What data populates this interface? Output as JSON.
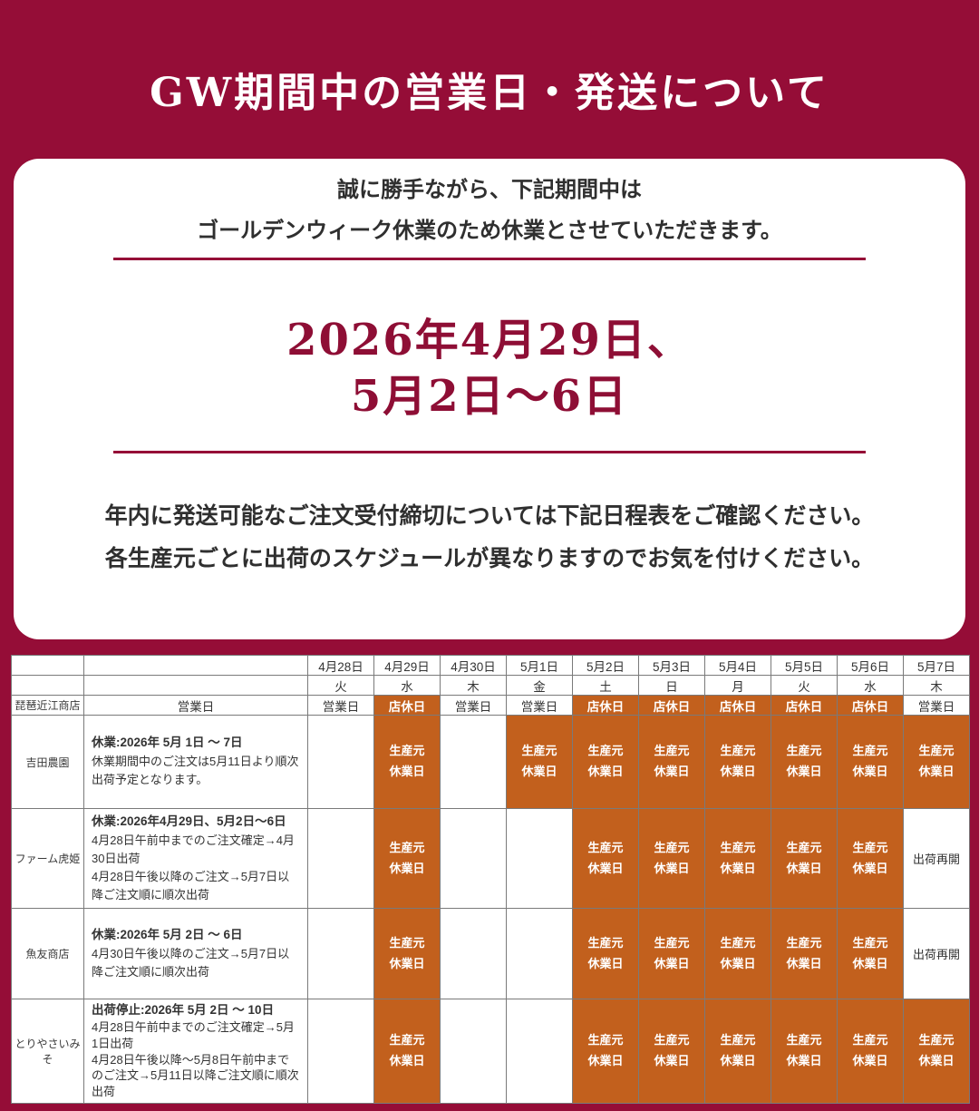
{
  "title": "GW期間中の営業日・発送について",
  "notice": {
    "intro_lines": [
      "誠に勝手ながら、下記期間中は",
      "ゴールデンウィーク休業のため休業とさせていただきます。"
    ],
    "closure_period_lines": [
      "2026年4月29日、",
      "5月2日〜6日"
    ],
    "footer_lines": [
      "年内に発送可能なご注文受付締切については下記日程表をご確認ください。",
      "各生産元ごとに出荷のスケジュールが異なりますのでお気を付けください。"
    ]
  },
  "colors": {
    "background_maroon": "#950d37",
    "closure_text_maroon": "#8e0e35",
    "holiday_orange": "#c2601d",
    "text_dark": "#333333",
    "table_border_gray": "#7a7a7a"
  },
  "schedule_table": {
    "date_headers": [
      "4月28日",
      "4月29日",
      "4月30日",
      "5月1日",
      "5月2日",
      "5月3日",
      "5月4日",
      "5月5日",
      "5月6日",
      "5月7日"
    ],
    "day_headers": [
      "火",
      "水",
      "木",
      "金",
      "土",
      "日",
      "月",
      "火",
      "水",
      "木"
    ],
    "store_row": {
      "name": "琵琶近江商店",
      "schedule_label": "営業日",
      "cells": [
        "営業日",
        "店休日",
        "営業日",
        "営業日",
        "店休日",
        "店休日",
        "店休日",
        "店休日",
        "店休日",
        "営業日"
      ]
    },
    "producer_rows": [
      {
        "name": "吉田農園",
        "note_title": "休業:2026年 5月 1日 〜 7日",
        "note_lines": [
          "休業期間中のご注文は5月11日より順次出荷予定となります。"
        ],
        "cells": [
          "",
          "生産元休業日",
          "",
          "生産元休業日",
          "生産元休業日",
          "生産元休業日",
          "生産元休業日",
          "生産元休業日",
          "生産元休業日",
          "生産元休業日"
        ]
      },
      {
        "name": "ファーム虎姫",
        "note_title": "休業:2026年4月29日、5月2日〜6日",
        "note_lines": [
          "4月28日午前中までのご注文確定→4月30日出荷",
          "4月28日午後以降のご注文→5月7日以降ご注文順に順次出荷"
        ],
        "cells": [
          "",
          "生産元休業日",
          "",
          "",
          "生産元休業日",
          "生産元休業日",
          "生産元休業日",
          "生産元休業日",
          "生産元休業日",
          "出荷再開"
        ]
      },
      {
        "name": "魚友商店",
        "note_title": "休業:2026年 5月 2日 〜 6日",
        "note_lines": [
          "4月30日午後以降のご注文→5月7日以降ご注文順に順次出荷"
        ],
        "cells": [
          "",
          "生産元休業日",
          "",
          "",
          "生産元休業日",
          "生産元休業日",
          "生産元休業日",
          "生産元休業日",
          "生産元休業日",
          "出荷再開"
        ]
      },
      {
        "name": "とりやさいみそ",
        "note_title": "出荷停止:2026年 5月 2日 〜 10日",
        "note_lines": [
          "4月28日午前中までのご注文確定→5月1日出荷",
          "4月28日午後以降〜5月8日午前中までのご注文→5月11日以降ご注文順に順次出荷"
        ],
        "cells": [
          "",
          "生産元休業日",
          "",
          "",
          "生産元休業日",
          "生産元休業日",
          "生産元休業日",
          "生産元休業日",
          "生産元休業日",
          "生産元休業日"
        ]
      }
    ]
  }
}
